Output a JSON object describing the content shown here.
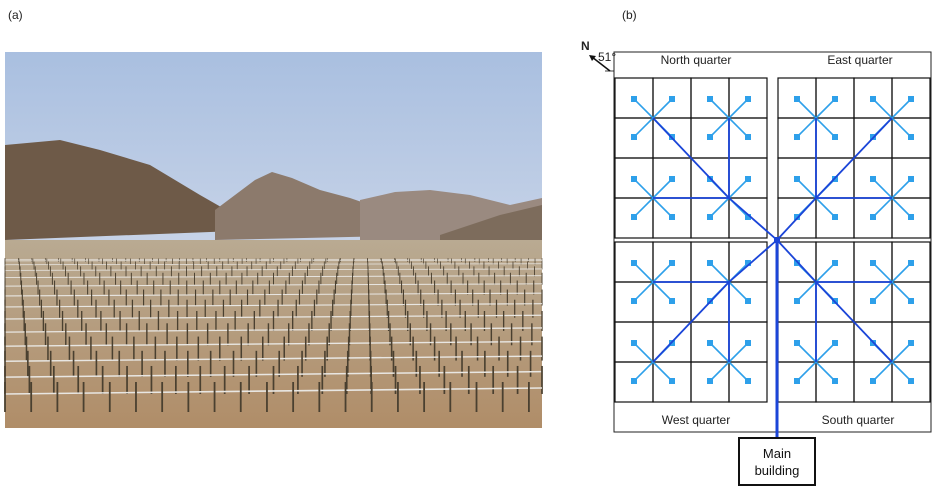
{
  "panel_labels": [
    "(a)",
    "(b)"
  ],
  "compass": {
    "north": "N",
    "angle": "51°"
  },
  "quarters": [
    "North quarter",
    "East quarter",
    "West quarter",
    "South quarter"
  ],
  "main_building": "Main building"
}
